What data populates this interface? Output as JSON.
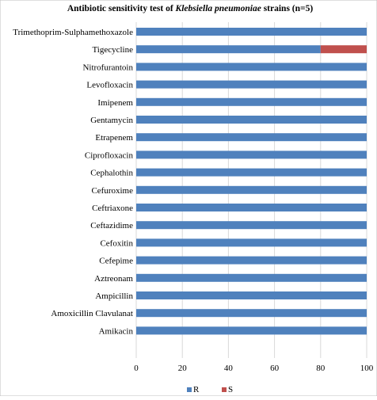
{
  "chart_data": {
    "type": "bar",
    "orientation": "horizontal",
    "stacked": true,
    "title_parts": {
      "prefix": "Antibiotic  sensitivity test of ",
      "italic": "Klebsiella pneumoniae",
      "suffix": " strains (n=5)"
    },
    "categories": [
      "Trimethoprim-Sulphamethoxazole",
      "Tigecycline",
      "Nitrofurantoin",
      "Levofloxacin",
      "Imipenem",
      "Gentamycin",
      "Etrapenem",
      "Ciprofloxacin",
      "Cephalothin",
      "Cefuroxime",
      "Ceftriaxone",
      "Ceftazidime",
      "Cefoxitin",
      "Cefepime",
      "Aztreonam",
      "Ampicillin",
      "Amoxicillin Clavulanat",
      "Amikacin"
    ],
    "series": [
      {
        "name": "R",
        "color": "#4f81bd",
        "values": [
          100,
          80,
          100,
          100,
          100,
          100,
          100,
          100,
          100,
          100,
          100,
          100,
          100,
          100,
          100,
          100,
          100,
          100
        ]
      },
      {
        "name": "S",
        "color": "#c0504d",
        "values": [
          0,
          20,
          0,
          0,
          0,
          0,
          0,
          0,
          0,
          0,
          0,
          0,
          0,
          0,
          0,
          0,
          0,
          0
        ]
      }
    ],
    "xlim": [
      0,
      100
    ],
    "xticks": [
      "0",
      "20",
      "40",
      "60",
      "80",
      "100"
    ],
    "grid": true,
    "legend_position": "bottom"
  }
}
